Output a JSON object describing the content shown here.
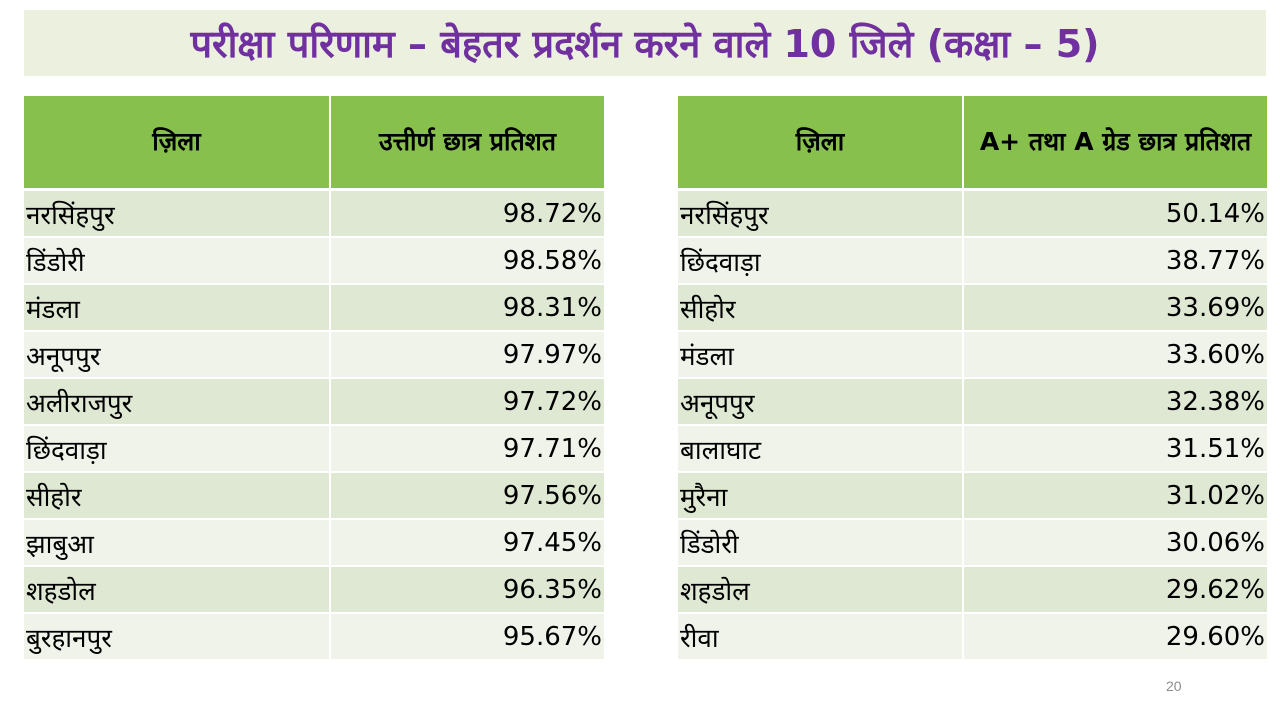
{
  "title": "परीक्षा परिणाम – बेहतर प्रदर्शन करने वाले 10 जिले (कक्षा – 5)",
  "left_table": {
    "headers": [
      "ज़िला",
      "उत्तीर्ण छात्र प्रतिशत"
    ],
    "rows": [
      {
        "district": "नरसिंहपुर",
        "value": "98.72%"
      },
      {
        "district": "डिंडोरी",
        "value": "98.58%"
      },
      {
        "district": "मंडला",
        "value": "98.31%"
      },
      {
        "district": "अनूपपुर",
        "value": "97.97%"
      },
      {
        "district": "अलीराजपुर",
        "value": "97.72%"
      },
      {
        "district": "छिंदवाड़ा",
        "value": "97.71%"
      },
      {
        "district": "सीहोर",
        "value": "97.56%"
      },
      {
        "district": "झाबुआ",
        "value": "97.45%"
      },
      {
        "district": "शहडोल",
        "value": "96.35%"
      },
      {
        "district": "बुरहानपुर",
        "value": "95.67%"
      }
    ]
  },
  "right_table": {
    "headers": [
      "ज़िला",
      "A+ तथा A ग्रेड छात्र प्रतिशत"
    ],
    "rows": [
      {
        "district": "नरसिंहपुर",
        "value": "50.14%"
      },
      {
        "district": "छिंदवाड़ा",
        "value": "38.77%"
      },
      {
        "district": "सीहोर",
        "value": "33.69%"
      },
      {
        "district": "मंडला",
        "value": "33.60%"
      },
      {
        "district": "अनूपपुर",
        "value": "32.38%"
      },
      {
        "district": "बालाघाट",
        "value": "31.51%"
      },
      {
        "district": "मुरैना",
        "value": "31.02%"
      },
      {
        "district": "डिंडोरी",
        "value": "30.06%"
      },
      {
        "district": "शहडोल",
        "value": "29.62%"
      },
      {
        "district": "रीवा",
        "value": "29.60%"
      }
    ]
  },
  "page_number": "20",
  "colors": {
    "title_text": "#7030a0",
    "title_background": "#ebf1de",
    "header_background": "#88c04d",
    "row_odd": "#dfe8d3",
    "row_even": "#eff3ea"
  }
}
